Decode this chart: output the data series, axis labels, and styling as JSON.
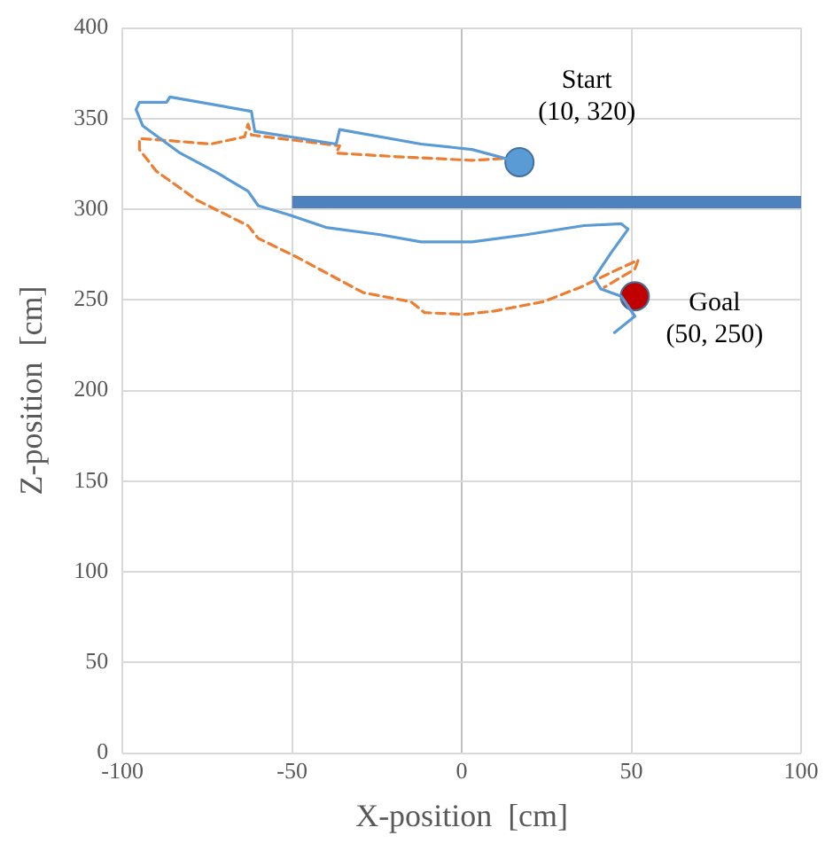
{
  "chart_data": {
    "type": "line",
    "xlabel": "X-position  [cm]",
    "ylabel": "Z-position  [cm]",
    "xlim": [
      -100,
      100
    ],
    "xticks": [
      -100,
      -50,
      0,
      50,
      100
    ],
    "ylim": [
      0,
      400
    ],
    "yticks": [
      0,
      50,
      100,
      150,
      200,
      250,
      300,
      350,
      400
    ],
    "grid": true,
    "legend": false,
    "series": [
      {
        "type": "line",
        "color": "#4f81bd",
        "line_style": "solid",
        "marker": "none",
        "x": [
          -50,
          100
        ],
        "values": [
          304,
          304
        ]
      },
      {
        "type": "line",
        "color": "#5b9bd5",
        "line_style": "solid",
        "marker": "none",
        "x": [
          17,
          3,
          -12,
          -36,
          -37,
          -61,
          -62,
          -86,
          -87,
          -95,
          -96,
          -94,
          -83,
          -72,
          -63,
          -60,
          -51,
          -40,
          -24,
          -12,
          3,
          19,
          36,
          47,
          49,
          44,
          39,
          41,
          47,
          51,
          45
        ],
        "values": [
          326,
          333,
          336,
          344,
          336,
          343,
          354,
          362,
          359,
          359,
          355,
          346,
          331,
          320,
          310,
          302,
          297,
          290,
          286,
          282,
          282,
          286,
          291,
          292,
          289,
          276,
          262,
          256,
          252,
          241,
          232
        ]
      },
      {
        "type": "line",
        "color": "#ed7d31",
        "line_style": "dashed",
        "marker": "none",
        "x": [
          12,
          3,
          -19,
          -37,
          -36,
          -62,
          -63,
          -64,
          -74,
          -87,
          -95,
          -95,
          -90,
          -78,
          -63,
          -60,
          -49,
          -39,
          -29,
          -15,
          -11,
          1,
          10,
          24,
          35,
          45,
          52,
          51,
          42
        ],
        "values": [
          328,
          327,
          329,
          331,
          335,
          341,
          347,
          340,
          336,
          338,
          339,
          333,
          321,
          305,
          291,
          284,
          274,
          264,
          254,
          249,
          243,
          242,
          244,
          249,
          257,
          266,
          272,
          267,
          257
        ]
      },
      {
        "type": "scatter",
        "color": "#5b9bd5",
        "marker": "circle",
        "x": [
          17
        ],
        "values": [
          326
        ]
      },
      {
        "type": "scatter",
        "color": "#c00000",
        "marker": "circle",
        "x": [
          51
        ],
        "values": [
          252
        ]
      }
    ],
    "annotations": [
      "Start\n(10, 320)",
      "Goal\n(50, 250)"
    ]
  }
}
